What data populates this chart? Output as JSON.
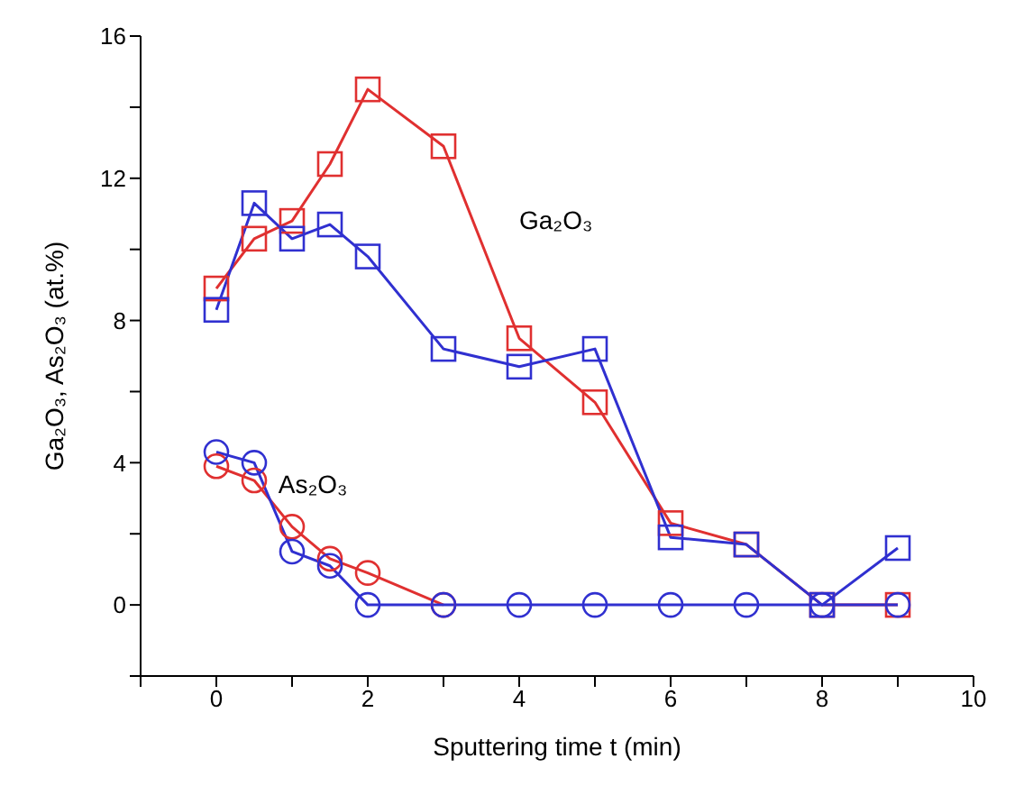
{
  "chart_data": {
    "type": "line",
    "xlabel": "Sputtering time t (min)",
    "ylabel": "Ga₂O₃, As₂O₃ (at.%)",
    "x": [
      0,
      0.5,
      1,
      1.5,
      2,
      3,
      4,
      5,
      6,
      7,
      8,
      9
    ],
    "series": [
      {
        "color": "#e03030",
        "marker": "square",
        "values": [
          8.9,
          10.3,
          10.8,
          12.4,
          14.5,
          12.9,
          7.5,
          5.7,
          2.3,
          1.7,
          0,
          0
        ]
      },
      {
        "color": "#3030d0",
        "marker": "square",
        "values": [
          8.3,
          11.3,
          10.3,
          10.7,
          9.8,
          7.2,
          6.7,
          7.2,
          1.9,
          1.7,
          0,
          1.6
        ]
      },
      {
        "color": "#e03030",
        "marker": "circle",
        "values": [
          3.9,
          3.5,
          2.2,
          1.3,
          0.9,
          0,
          null,
          null,
          null,
          null,
          null,
          null
        ]
      },
      {
        "color": "#3030d0",
        "marker": "circle",
        "values": [
          4.3,
          4.0,
          1.5,
          1.1,
          0,
          0,
          0,
          0,
          0,
          0,
          0,
          0
        ]
      }
    ],
    "annotations": [
      "Ga₂O₃",
      {
        "text": "As₂O₃",
        "x": 0.7,
        "y": 3.4
      }
    ],
    "xlim": [
      -1,
      10
    ],
    "xticks": [
      {
        "value": -1,
        "label": null
      },
      0,
      {
        "value": 1,
        "label": null
      },
      2,
      {
        "value": 3,
        "label": null
      },
      4,
      {
        "value": 5,
        "label": null
      },
      6,
      {
        "value": 7,
        "label": null
      },
      8,
      {
        "value": 9,
        "label": null
      },
      10
    ],
    "ylim": [
      -2,
      16
    ],
    "yticks": [
      {
        "value": -2,
        "label": null
      },
      0,
      {
        "value": 2,
        "label": null
      },
      4,
      {
        "value": 6,
        "label": null
      },
      8,
      {
        "value": 10,
        "label": null
      },
      12,
      {
        "value": 14,
        "label": null
      },
      16
    ],
    "grid": false,
    "legend": false
  }
}
